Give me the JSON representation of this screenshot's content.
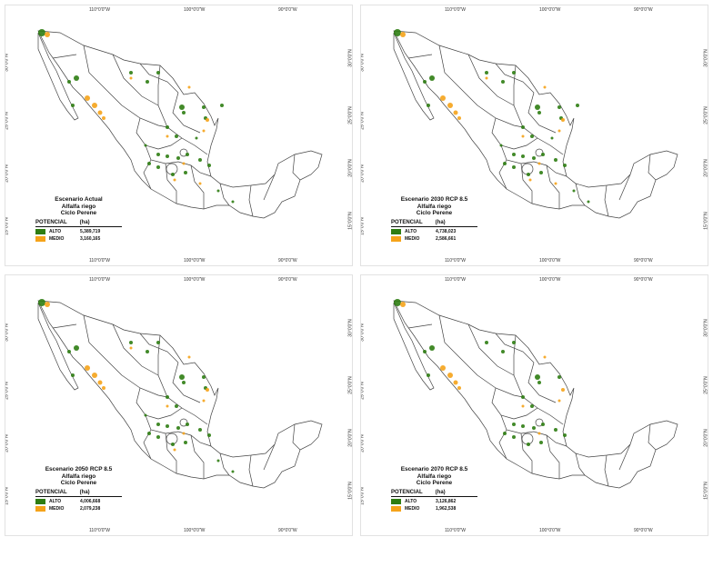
{
  "colors": {
    "alto": "#2e7d12",
    "medio": "#f5a31a",
    "outline": "#444444"
  },
  "graticule": {
    "lon": [
      "110°0'0\"W",
      "100°0'0\"W",
      "90°0'0\"W"
    ],
    "lat": [
      "30°0'0\"N",
      "25°0'0\"N",
      "20°0'0\"N",
      "15°0'0\"N"
    ]
  },
  "panels": [
    {
      "title1": "Escenario Actual",
      "title2": "Alfalfa riego",
      "title3": "Ciclo Perene",
      "potencial": "POTENCIAL",
      "unit": "(ha)",
      "alto_label": "ALTO",
      "alto_value": "5,389,719",
      "medio_label": "MEDIO",
      "medio_value": "3,160,165"
    },
    {
      "title1": "Escenario 2030 RCP 8.5",
      "title2": "Alfalfa riego",
      "title3": "Ciclo Perene",
      "potencial": "POTENCIAL",
      "unit": "(ha)",
      "alto_label": "ALTO",
      "alto_value": "4,738,023",
      "medio_label": "MEDIO",
      "medio_value": "2,586,661"
    },
    {
      "title1": "Escenario 2050 RCP 8.5",
      "title2": "Alfalfa riego",
      "title3": "Ciclo Perene",
      "potencial": "POTENCIAL",
      "unit": "(ha)",
      "alto_label": "ALTO",
      "alto_value": "4,006,668",
      "medio_label": "MEDIO",
      "medio_value": "2,079,238"
    },
    {
      "title1": "Escenario 2070 RCP 8.5",
      "title2": "Alfalfa riego",
      "title3": "Ciclo Perene",
      "potencial": "POTENCIAL",
      "unit": "(ha)",
      "alto_label": "ALTO",
      "alto_value": "3,126,862",
      "medio_label": "MEDIO",
      "medio_value": "1,962,538"
    }
  ]
}
